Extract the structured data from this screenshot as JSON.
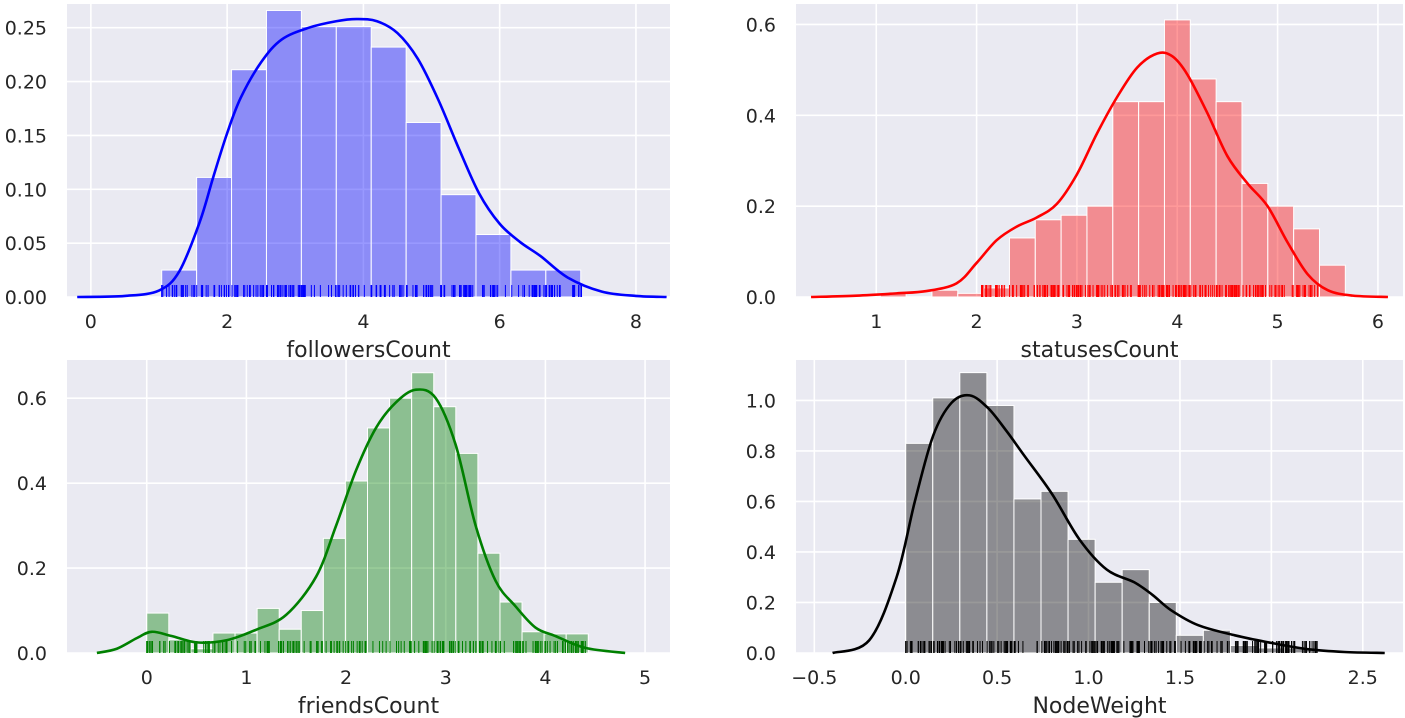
{
  "chart_data": [
    {
      "type": "histogram",
      "xlabel": "followersCount",
      "ylabel": "",
      "color": "#0000ff",
      "xlim": [
        -0.35,
        8.5
      ],
      "ylim": [
        0,
        0.272
      ],
      "xticks": [
        0,
        2,
        4,
        6,
        8
      ],
      "yticks": [
        0.0,
        0.05,
        0.1,
        0.15,
        0.2,
        0.25
      ],
      "ytick_labels": [
        "0.00",
        "0.05",
        "0.10",
        "0.15",
        "0.20",
        "0.25"
      ],
      "grid": true,
      "bins": {
        "start": 1.04,
        "width": 0.5125,
        "heights": [
          0.025,
          0.111,
          0.211,
          0.266,
          0.251,
          0.251,
          0.232,
          0.162,
          0.095,
          0.058,
          0.025,
          0.025
        ]
      },
      "kde": {
        "x": [
          -0.2,
          0.5,
          1.0,
          1.3,
          1.6,
          1.8,
          2.0,
          2.2,
          2.5,
          2.8,
          3.2,
          3.6,
          3.9,
          4.2,
          4.5,
          4.8,
          5.1,
          5.4,
          5.7,
          6.0,
          6.3,
          6.6,
          7.0,
          7.5,
          8.0,
          8.45
        ],
        "y": [
          0.0,
          0.001,
          0.006,
          0.024,
          0.07,
          0.112,
          0.152,
          0.185,
          0.218,
          0.239,
          0.25,
          0.256,
          0.258,
          0.256,
          0.245,
          0.221,
          0.183,
          0.138,
          0.096,
          0.068,
          0.051,
          0.038,
          0.018,
          0.005,
          0.001,
          0.0
        ]
      },
      "rug": {
        "start": 1.04,
        "end": 7.2,
        "count": 220
      }
    },
    {
      "type": "histogram",
      "xlabel": "statusesCount",
      "ylabel": "",
      "color": "#ff0000",
      "xlim": [
        0.2,
        6.25
      ],
      "ylim": [
        0,
        0.645
      ],
      "xticks": [
        1,
        2,
        3,
        4,
        5,
        6
      ],
      "yticks": [
        0.0,
        0.2,
        0.4,
        0.6
      ],
      "ytick_labels": [
        "0.0",
        "0.2",
        "0.4",
        "0.6"
      ],
      "grid": true,
      "bins": {
        "start": 1.04,
        "width": 0.2575,
        "heights": [
          0.008,
          0.0,
          0.015,
          0.008,
          0.02,
          0.13,
          0.17,
          0.18,
          0.2,
          0.43,
          0.43,
          0.61,
          0.48,
          0.43,
          0.25,
          0.2,
          0.15,
          0.07
        ]
      },
      "kde": {
        "x": [
          0.35,
          0.8,
          1.2,
          1.5,
          1.8,
          2.0,
          2.2,
          2.4,
          2.6,
          2.8,
          3.0,
          3.2,
          3.4,
          3.6,
          3.8,
          3.95,
          4.1,
          4.3,
          4.5,
          4.7,
          4.9,
          5.1,
          5.3,
          5.5,
          5.75,
          6.1
        ],
        "y": [
          0.0,
          0.003,
          0.008,
          0.013,
          0.03,
          0.075,
          0.125,
          0.155,
          0.175,
          0.205,
          0.27,
          0.36,
          0.44,
          0.505,
          0.536,
          0.53,
          0.49,
          0.405,
          0.31,
          0.25,
          0.2,
          0.12,
          0.05,
          0.015,
          0.003,
          0.0
        ]
      },
      "rug": {
        "start": 2.05,
        "end": 5.4,
        "count": 240
      }
    },
    {
      "type": "histogram",
      "xlabel": "friendsCount",
      "ylabel": "",
      "color": "#008000",
      "xlim": [
        -0.8,
        5.25
      ],
      "ylim": [
        0,
        0.69
      ],
      "xticks": [
        0,
        1,
        2,
        3,
        4,
        5
      ],
      "yticks": [
        0.0,
        0.2,
        0.4,
        0.6
      ],
      "ytick_labels": [
        "0.0",
        "0.2",
        "0.4",
        "0.6"
      ],
      "grid": true,
      "bins": {
        "start": 0.0,
        "width": 0.2215,
        "heights": [
          0.094,
          0.031,
          0.01,
          0.047,
          0.047,
          0.105,
          0.056,
          0.1,
          0.27,
          0.405,
          0.53,
          0.6,
          0.66,
          0.58,
          0.47,
          0.235,
          0.12,
          0.05,
          0.045,
          0.045
        ]
      },
      "kde": {
        "x": [
          -0.5,
          -0.3,
          -0.1,
          0.05,
          0.25,
          0.5,
          0.8,
          1.1,
          1.4,
          1.7,
          1.9,
          2.1,
          2.3,
          2.5,
          2.7,
          2.9,
          3.1,
          3.3,
          3.5,
          3.7,
          3.9,
          4.1,
          4.4,
          4.8
        ],
        "y": [
          0.0,
          0.01,
          0.035,
          0.05,
          0.04,
          0.025,
          0.03,
          0.055,
          0.09,
          0.18,
          0.3,
          0.43,
          0.53,
          0.59,
          0.62,
          0.6,
          0.49,
          0.3,
          0.17,
          0.11,
          0.06,
          0.04,
          0.012,
          0.0
        ]
      },
      "rug": {
        "start": 0.0,
        "end": 4.4,
        "count": 230
      }
    },
    {
      "type": "histogram",
      "xlabel": "NodeWeight",
      "ylabel": "",
      "color": "#000000",
      "xlim": [
        -0.6,
        2.72
      ],
      "ylim": [
        0,
        1.16
      ],
      "xticks": [
        -0.5,
        0.0,
        0.5,
        1.0,
        1.5,
        2.0,
        2.5
      ],
      "xtick_labels": [
        "−0.5",
        "0.0",
        "0.5",
        "1.0",
        "1.5",
        "2.0",
        "2.5"
      ],
      "yticks": [
        0.0,
        0.2,
        0.4,
        0.6,
        0.8,
        1.0
      ],
      "ytick_labels": [
        "0.0",
        "0.2",
        "0.4",
        "0.6",
        "0.8",
        "1.0"
      ],
      "grid": true,
      "bins": {
        "start": 0.0,
        "width": 0.148,
        "heights": [
          0.83,
          1.01,
          1.11,
          0.98,
          0.61,
          0.64,
          0.45,
          0.28,
          0.33,
          0.2,
          0.07,
          0.09,
          0.03,
          0.02,
          0.02
        ]
      },
      "kde": {
        "x": [
          -0.4,
          -0.2,
          -0.05,
          0.05,
          0.15,
          0.25,
          0.35,
          0.45,
          0.55,
          0.65,
          0.8,
          0.95,
          1.1,
          1.25,
          1.35,
          1.45,
          1.6,
          1.8,
          2.0,
          2.2,
          2.4,
          2.62
        ],
        "y": [
          0.0,
          0.05,
          0.3,
          0.6,
          0.86,
          0.99,
          1.02,
          0.97,
          0.88,
          0.78,
          0.63,
          0.45,
          0.33,
          0.28,
          0.23,
          0.17,
          0.11,
          0.07,
          0.04,
          0.015,
          0.004,
          0.0
        ]
      },
      "rug": {
        "start": 0.0,
        "end": 2.25,
        "count": 260
      }
    }
  ]
}
